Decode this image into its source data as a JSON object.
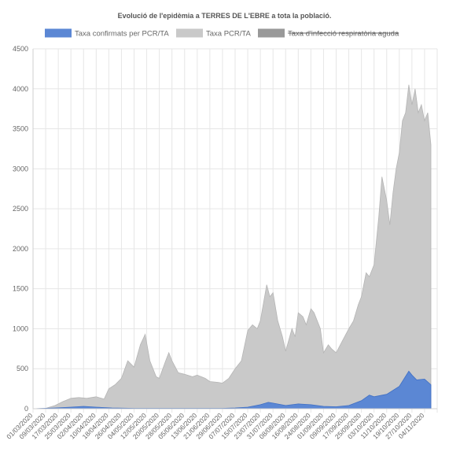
{
  "chart_data": {
    "type": "area",
    "title": "Evolució de l'epidèmia a TERRES DE L'EBRE a tota la població.",
    "ylim": [
      0,
      4500
    ],
    "yticks": [
      0,
      500,
      1000,
      1500,
      2000,
      2500,
      3000,
      3500,
      4000,
      4500
    ],
    "xtick_labels": [
      "01/03/2020",
      "09/03/2020",
      "17/03/2020",
      "25/03/2020",
      "02/04/2020",
      "10/04/2020",
      "18/04/2020",
      "26/04/2020",
      "04/05/2020",
      "12/05/2020",
      "20/05/2020",
      "28/05/2020",
      "05/06/2020",
      "13/06/2020",
      "21/06/2020",
      "29/06/2020",
      "07/07/2020",
      "15/07/2020",
      "23/07/2020",
      "31/07/2020",
      "08/08/2020",
      "16/08/2020",
      "24/08/2020",
      "01/09/2020",
      "09/09/2020",
      "17/09/2020",
      "25/09/2020",
      "03/10/2020",
      "11/10/2020",
      "19/10/2020",
      "27/10/2020",
      "04/11/2020"
    ],
    "grid": true,
    "legend_position": "top",
    "series": [
      {
        "name": "Taxa confirmats per PCR/TA",
        "color": "#5b87d4",
        "hidden": false,
        "x": [
          "01/03/2020",
          "15/03/2020",
          "25/03/2020",
          "02/04/2020",
          "10/04/2020",
          "20/04/2020",
          "04/05/2020",
          "28/05/2020",
          "29/06/2020",
          "07/07/2020",
          "15/07/2020",
          "23/07/2020",
          "28/07/2020",
          "31/07/2020",
          "08/08/2020",
          "16/08/2020",
          "24/08/2020",
          "01/09/2020",
          "09/09/2020",
          "17/09/2020",
          "25/09/2020",
          "30/09/2020",
          "03/10/2020",
          "11/10/2020",
          "19/10/2020",
          "25/10/2020",
          "27/10/2020",
          "30/10/2020",
          "04/11/2020",
          "08/11/2020"
        ],
        "values": [
          0,
          10,
          20,
          30,
          20,
          10,
          5,
          5,
          5,
          10,
          20,
          50,
          80,
          70,
          40,
          60,
          50,
          30,
          25,
          40,
          100,
          170,
          150,
          180,
          280,
          470,
          420,
          360,
          370,
          300
        ]
      },
      {
        "name": "Taxa PCR/TA",
        "color": "#c9c9c9",
        "hidden": false,
        "x": [
          "01/03/2020",
          "09/03/2020",
          "15/03/2020",
          "20/03/2020",
          "25/03/2020",
          "30/03/2020",
          "04/04/2020",
          "10/04/2020",
          "15/04/2020",
          "18/04/2020",
          "22/04/2020",
          "26/04/2020",
          "30/04/2020",
          "04/05/2020",
          "08/05/2020",
          "11/05/2020",
          "14/05/2020",
          "18/05/2020",
          "20/05/2020",
          "24/05/2020",
          "26/05/2020",
          "28/05/2020",
          "01/06/2020",
          "05/06/2020",
          "10/06/2020",
          "13/06/2020",
          "18/06/2020",
          "21/06/2020",
          "26/06/2020",
          "29/06/2020",
          "03/07/2020",
          "07/07/2020",
          "11/07/2020",
          "15/07/2020",
          "18/07/2020",
          "21/07/2020",
          "23/07/2020",
          "27/07/2020",
          "29/07/2020",
          "31/07/2020",
          "03/08/2020",
          "06/08/2020",
          "08/08/2020",
          "12/08/2020",
          "14/08/2020",
          "16/08/2020",
          "19/08/2020",
          "21/08/2020",
          "24/08/2020",
          "26/08/2020",
          "30/08/2020",
          "01/09/2020",
          "04/09/2020",
          "06/09/2020",
          "09/09/2020",
          "13/09/2020",
          "17/09/2020",
          "20/09/2020",
          "23/09/2020",
          "25/09/2020",
          "28/09/2020",
          "30/09/2020",
          "03/10/2020",
          "06/10/2020",
          "08/10/2020",
          "11/10/2020",
          "13/10/2020",
          "15/10/2020",
          "17/10/2020",
          "19/10/2020",
          "21/10/2020",
          "23/10/2020",
          "25/10/2020",
          "27/10/2020",
          "29/10/2020",
          "31/10/2020",
          "02/11/2020",
          "04/11/2020",
          "06/11/2020",
          "08/11/2020"
        ],
        "values": [
          0,
          5,
          40,
          90,
          130,
          140,
          130,
          150,
          120,
          250,
          300,
          380,
          600,
          520,
          800,
          930,
          600,
          400,
          380,
          600,
          700,
          600,
          450,
          430,
          400,
          420,
          380,
          340,
          330,
          320,
          380,
          500,
          600,
          980,
          1050,
          1000,
          1100,
          1550,
          1400,
          1450,
          1100,
          900,
          720,
          1000,
          900,
          1200,
          1150,
          1050,
          1250,
          1200,
          1000,
          700,
          800,
          750,
          700,
          850,
          1000,
          1100,
          1300,
          1400,
          1700,
          1650,
          1800,
          2400,
          2900,
          2600,
          2300,
          2700,
          3000,
          3200,
          3600,
          3700,
          4050,
          3800,
          4000,
          3700,
          3800,
          3600,
          3700,
          3300
        ]
      },
      {
        "name": "Taxa d'infecció respiratòria aguda",
        "color": "#999999",
        "hidden": true,
        "x": [],
        "values": []
      }
    ]
  }
}
